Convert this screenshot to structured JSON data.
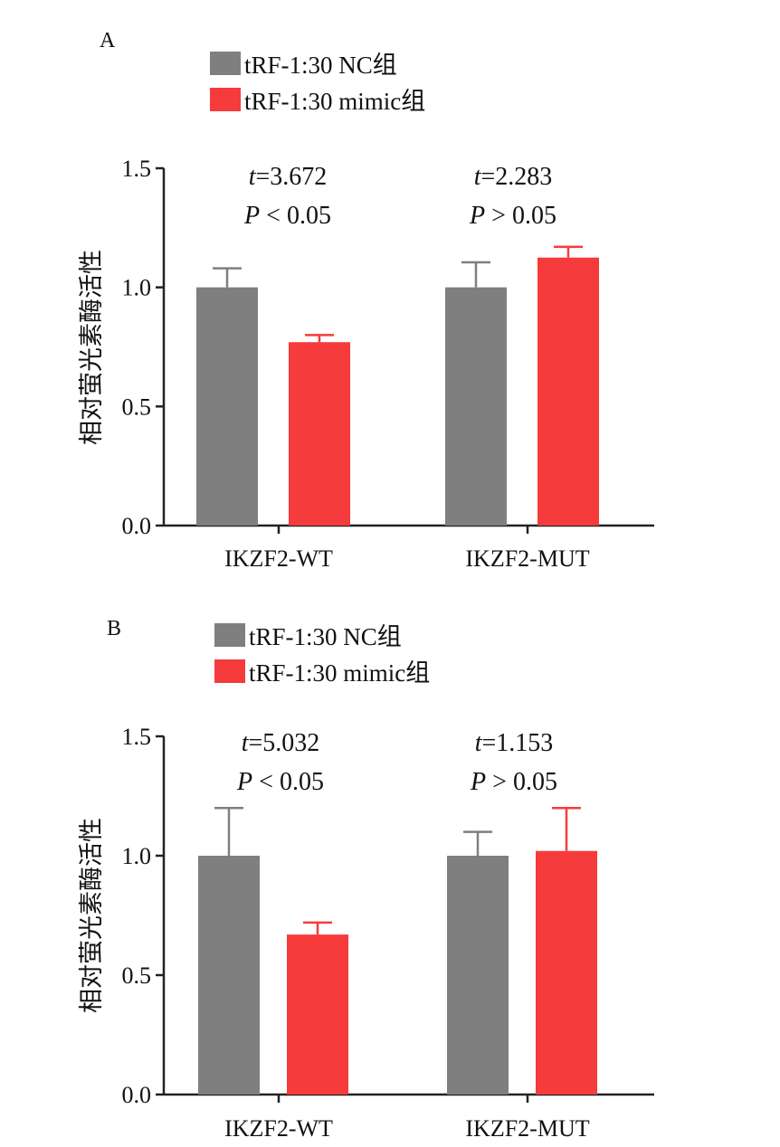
{
  "colors": {
    "nc": "#7f7f7f",
    "mimic": "#f53b3c",
    "axis": "#222222"
  },
  "chart_data": [
    {
      "panel": "A",
      "type": "bar",
      "categories": [
        "IKZF2-WT",
        "IKZF2-MUT"
      ],
      "series": [
        {
          "name": "tRF-1:30 NC组",
          "values": [
            1.0,
            1.0
          ],
          "errors": [
            0.08,
            0.105
          ]
        },
        {
          "name": "tRF-1:30 mimic组",
          "values": [
            0.77,
            1.125
          ],
          "errors": [
            0.03,
            0.045
          ]
        }
      ],
      "ylabel": "相对萤光素酶活性",
      "ylim": [
        0,
        1.5
      ],
      "yticks": [
        "0.0",
        "0.5",
        "1.0",
        "1.5"
      ],
      "annotations": [
        {
          "t_sym": "t",
          "t_val": "=3.672",
          "p_sym": "P",
          "p_val": " < 0.05"
        },
        {
          "t_sym": "t",
          "t_val": "=2.283",
          "p_sym": "P",
          "p_val": " > 0.05"
        }
      ],
      "legend": "top-left",
      "grid": false
    },
    {
      "panel": "B",
      "type": "bar",
      "categories": [
        "IKZF2-WT",
        "IKZF2-MUT"
      ],
      "series": [
        {
          "name": "tRF-1:30 NC组",
          "values": [
            1.0,
            1.0
          ],
          "errors": [
            0.2,
            0.1
          ]
        },
        {
          "name": "tRF-1:30 mimic组",
          "values": [
            0.67,
            1.02
          ],
          "errors": [
            0.05,
            0.18
          ]
        }
      ],
      "ylabel": "相对萤光素酶活性",
      "ylim": [
        0,
        1.5
      ],
      "yticks": [
        "0.0",
        "0.5",
        "1.0",
        "1.5"
      ],
      "annotations": [
        {
          "t_sym": "t",
          "t_val": "=5.032",
          "p_sym": "P",
          "p_val": " < 0.05"
        },
        {
          "t_sym": "t",
          "t_val": "=1.153",
          "p_sym": "P",
          "p_val": " > 0.05"
        }
      ],
      "legend": "top-left",
      "grid": false
    }
  ]
}
